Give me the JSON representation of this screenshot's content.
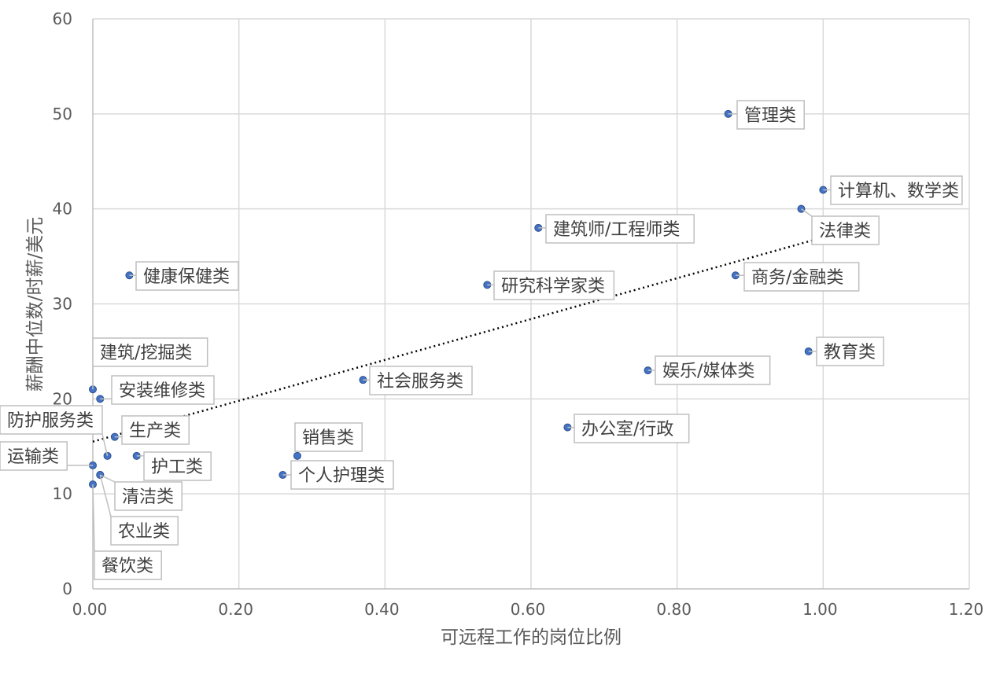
{
  "chart_data": {
    "type": "scatter",
    "xlabel": "可远程工作的岗位比例",
    "ylabel": "薪酬中位数/时薪/美元",
    "xlim": [
      0,
      1.2
    ],
    "ylim": [
      0,
      60
    ],
    "x_ticks": [
      "0.00",
      "0.20",
      "0.40",
      "0.60",
      "0.80",
      "1.00",
      "1.20"
    ],
    "y_ticks": [
      "0",
      "10",
      "20",
      "30",
      "40",
      "50",
      "60"
    ],
    "grid": true,
    "trendline": {
      "type": "linear",
      "style": "dotted",
      "from": [
        0,
        15.5
      ],
      "to": [
        1.0,
        37.0
      ]
    },
    "points": [
      {
        "label": "管理类",
        "x": 0.87,
        "y": 50
      },
      {
        "label": "计算机、数学类",
        "x": 1.0,
        "y": 42
      },
      {
        "label": "法律类",
        "x": 0.97,
        "y": 40
      },
      {
        "label": "建筑师/工程师类",
        "x": 0.61,
        "y": 38
      },
      {
        "label": "健康保健类",
        "x": 0.05,
        "y": 33
      },
      {
        "label": "研究科学家类",
        "x": 0.54,
        "y": 32
      },
      {
        "label": "商务/金融类",
        "x": 0.88,
        "y": 33
      },
      {
        "label": "教育类",
        "x": 0.98,
        "y": 25
      },
      {
        "label": "娱乐/媒体类",
        "x": 0.76,
        "y": 23
      },
      {
        "label": "社会服务类",
        "x": 0.37,
        "y": 22
      },
      {
        "label": "建筑/挖掘类",
        "x": 0.0,
        "y": 21
      },
      {
        "label": "安装维修类",
        "x": 0.01,
        "y": 20
      },
      {
        "label": "办公室/行政",
        "x": 0.65,
        "y": 17
      },
      {
        "label": "生产类",
        "x": 0.03,
        "y": 16
      },
      {
        "label": "防护服务类",
        "x": 0.02,
        "y": 14
      },
      {
        "label": "销售类",
        "x": 0.28,
        "y": 14
      },
      {
        "label": "护工类",
        "x": 0.06,
        "y": 14
      },
      {
        "label": "运输类",
        "x": 0.0,
        "y": 13
      },
      {
        "label": "个人护理类",
        "x": 0.26,
        "y": 12
      },
      {
        "label": "清洁类",
        "x": 0.01,
        "y": 12
      },
      {
        "label": "农业类",
        "x": 0.01,
        "y": 12
      },
      {
        "label": "餐饮类",
        "x": 0.0,
        "y": 11
      }
    ]
  }
}
